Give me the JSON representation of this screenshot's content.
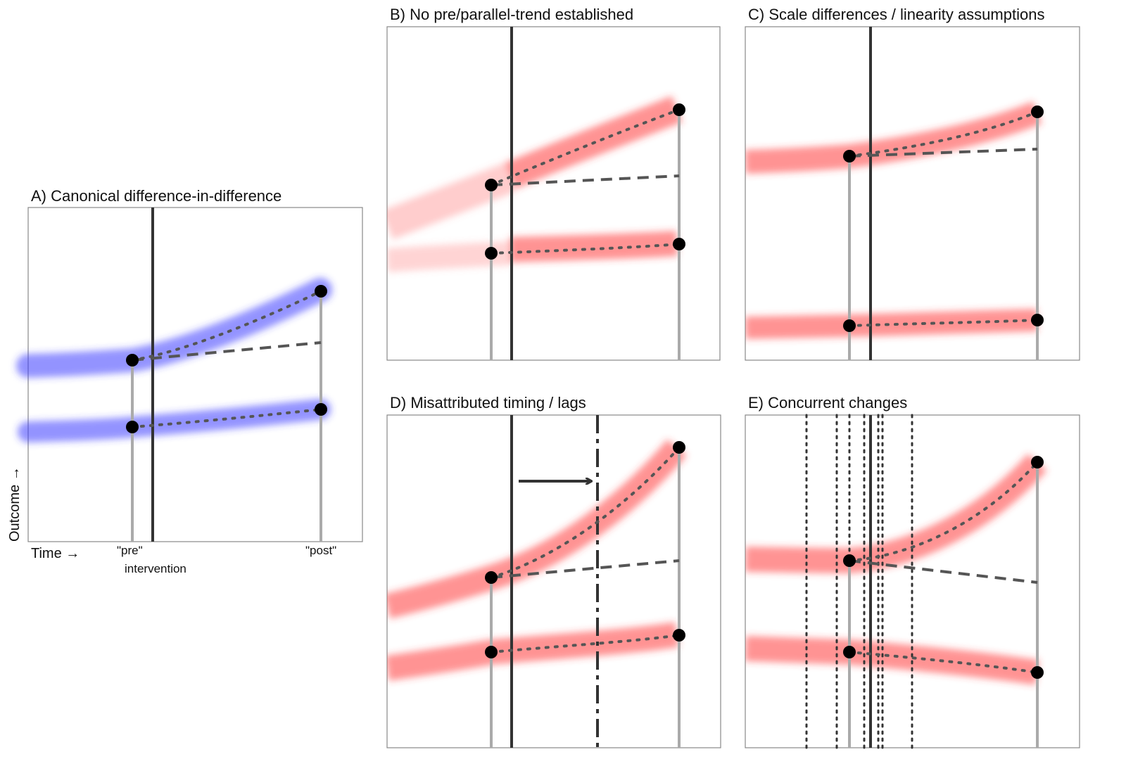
{
  "panels": [
    {
      "id": "A",
      "title": "A) Canonical difference-in-difference",
      "color": "#3b3bff",
      "x_label": "Time →",
      "y_label": "Outcome →",
      "tick_pre": "\"pre\"",
      "tick_post": "\"post\"",
      "intervention_label": "intervention"
    },
    {
      "id": "B",
      "title": "B) No pre/parallel-trend established",
      "color": "#ff3b3b"
    },
    {
      "id": "C",
      "title": "C) Scale differences / linearity assumptions",
      "color": "#ff3b3b"
    },
    {
      "id": "D",
      "title": "D) Misattributed timing / lags",
      "color": "#ff3b3b"
    },
    {
      "id": "E",
      "title": "E) Concurrent changes",
      "color": "#ff3b3b"
    }
  ],
  "colors": {
    "treatment_band_A": "#3b3bff",
    "treatment_band": "#ff3b3b",
    "axis": "#555555",
    "points": "#000000"
  }
}
